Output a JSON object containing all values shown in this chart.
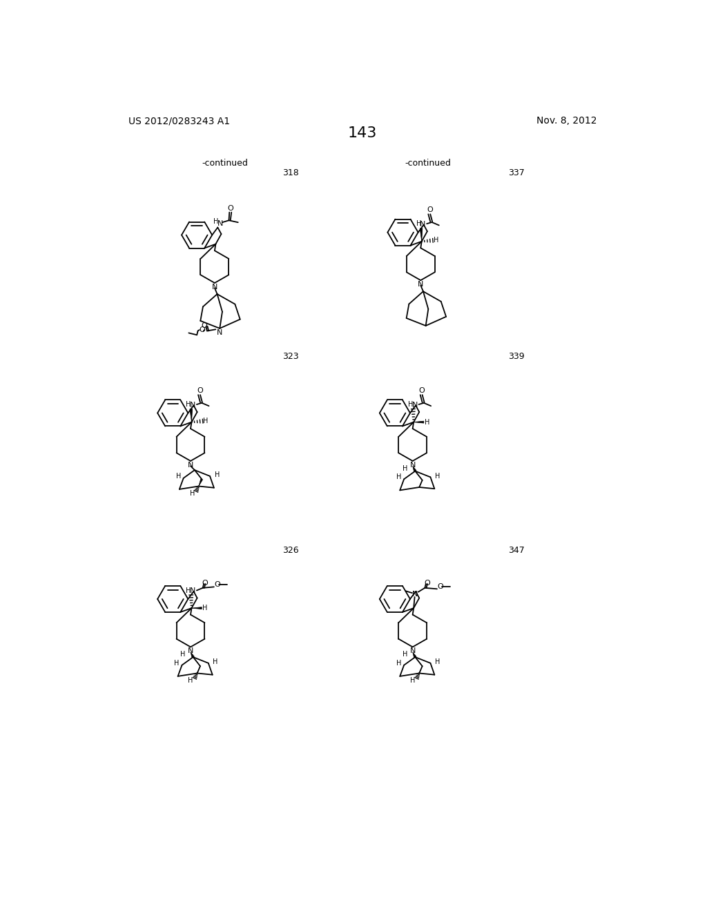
{
  "background_color": "#ffffff",
  "page_number": "143",
  "top_left_text": "US 2012/0283243 A1",
  "top_right_text": "Nov. 8, 2012",
  "font_size_page_num": 16,
  "font_size_header": 10,
  "font_size_compound_num": 9,
  "font_size_label": 9,
  "lw": 1.3
}
